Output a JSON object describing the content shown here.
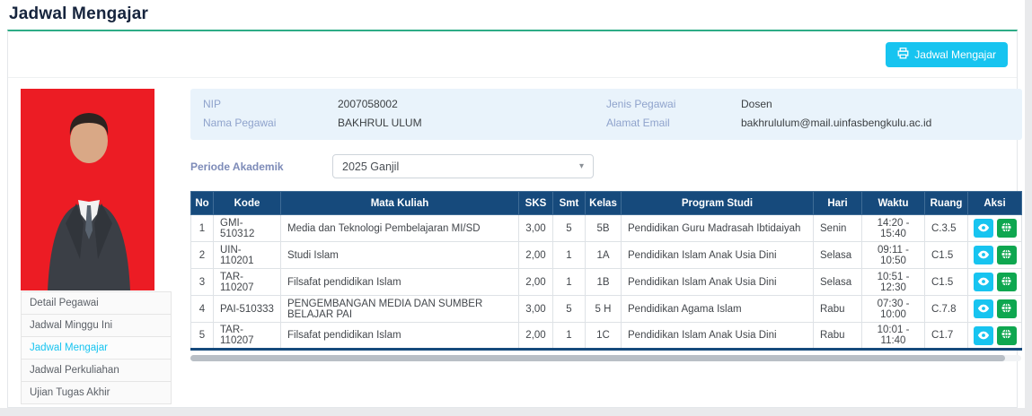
{
  "page": {
    "title": "Jadwal Mengajar"
  },
  "toolbar": {
    "print_button_label": "Jadwal Mengajar"
  },
  "icons": {
    "print": "printer-icon",
    "dropdown": "caret-down-icon",
    "view": "eye-icon",
    "location": "globe-icon"
  },
  "colors": {
    "accent_cyan": "#17c4f0",
    "card_top_green": "#2eac86",
    "table_header_navy": "#164a7c",
    "action_green": "#0fa750",
    "info_panel_bg": "#e9f3fb",
    "info_label": "#8fa3cc",
    "photo_background_red": "#ec1c24"
  },
  "sidebar": {
    "menu": [
      {
        "label": "Detail Pegawai",
        "active": false
      },
      {
        "label": "Jadwal Minggu Ini",
        "active": false
      },
      {
        "label": "Jadwal Mengajar",
        "active": true
      },
      {
        "label": "Jadwal Perkuliahan",
        "active": false
      },
      {
        "label": "Ujian Tugas Akhir",
        "active": false
      }
    ]
  },
  "employee": {
    "nip_label": "NIP",
    "nip": "2007058002",
    "name_label": "Nama Pegawai",
    "name": "BAKHRUL ULUM",
    "type_label": "Jenis Pegawai",
    "type": "Dosen",
    "email_label": "Alamat Email",
    "email": "bakhrululum@mail.uinfasbengkulu.ac.id"
  },
  "period": {
    "label": "Periode Akademik",
    "selected": "2025 Ganjil"
  },
  "table": {
    "headers": [
      "No",
      "Kode",
      "Mata Kuliah",
      "SKS",
      "Smt",
      "Kelas",
      "Program Studi",
      "Hari",
      "Waktu",
      "Ruang",
      "Aksi"
    ],
    "rows": [
      {
        "no": "1",
        "kode": "GMI-510312",
        "mata_kuliah": "Media dan Teknologi Pembelajaran MI/SD",
        "sks": "3,00",
        "smt": "5",
        "kelas": "5B",
        "program_studi": "Pendidikan Guru Madrasah Ibtidaiyah",
        "hari": "Senin",
        "waktu": "14:20 - 15:40",
        "ruang": "C.3.5"
      },
      {
        "no": "2",
        "kode": "UIN-110201",
        "mata_kuliah": "Studi Islam",
        "sks": "2,00",
        "smt": "1",
        "kelas": "1A",
        "program_studi": "Pendidikan Islam Anak Usia Dini",
        "hari": "Selasa",
        "waktu": "09:11 - 10:50",
        "ruang": "C1.5"
      },
      {
        "no": "3",
        "kode": "TAR-110207",
        "mata_kuliah": "Filsafat pendidikan Islam",
        "sks": "2,00",
        "smt": "1",
        "kelas": "1B",
        "program_studi": "Pendidikan Islam Anak Usia Dini",
        "hari": "Selasa",
        "waktu": "10:51 - 12:30",
        "ruang": "C1.5"
      },
      {
        "no": "4",
        "kode": "PAI-510333",
        "mata_kuliah": "PENGEMBANGAN MEDIA DAN SUMBER BELAJAR PAI",
        "sks": "3,00",
        "smt": "5",
        "kelas": "5 H",
        "program_studi": "Pendidikan Agama Islam",
        "hari": "Rabu",
        "waktu": "07:30 - 10:00",
        "ruang": "C.7.8"
      },
      {
        "no": "5",
        "kode": "TAR-110207",
        "mata_kuliah": "Filsafat pendidikan Islam",
        "sks": "2,00",
        "smt": "1",
        "kelas": "1C",
        "program_studi": "Pendidikan Islam Anak Usia Dini",
        "hari": "Rabu",
        "waktu": "10:01 - 11:40",
        "ruang": "C1.7"
      }
    ]
  }
}
